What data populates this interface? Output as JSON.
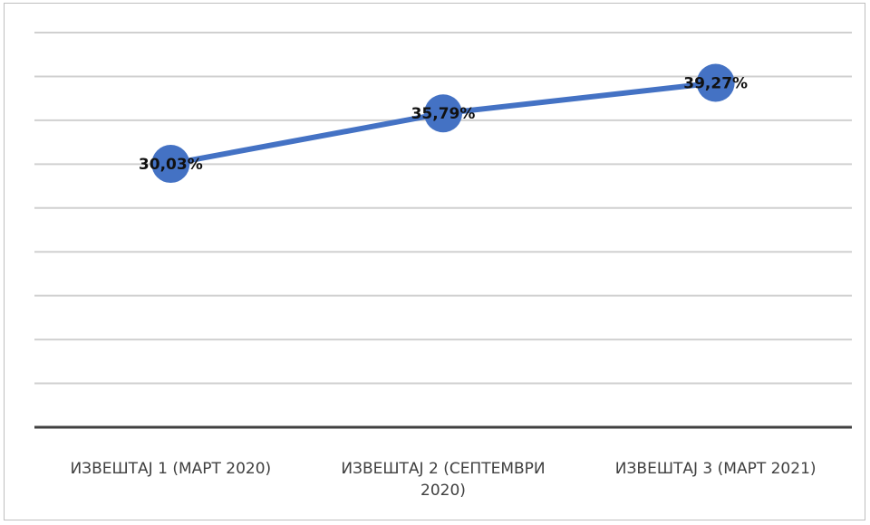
{
  "chart_data": {
    "type": "line",
    "title": "",
    "xlabel": "",
    "ylabel": "",
    "categories": [
      "ИЗВЕШТАЈ 1 (МАРТ 2020)",
      "ИЗВЕШТАЈ 2 (СЕПТЕМВРИ 2020)",
      "ИЗВЕШТАЈ 3 (МАРТ 2021)"
    ],
    "category_lines": [
      [
        "ИЗВЕШТАЈ 1 (МАРТ 2020)"
      ],
      [
        "ИЗВЕШТАЈ 2 (СЕПТЕМВРИ",
        "2020)"
      ],
      [
        "ИЗВЕШТАЈ 3 (МАРТ 2021)"
      ]
    ],
    "series": [
      {
        "values": [
          30.03,
          35.79,
          39.27
        ],
        "labels": [
          "30,03%",
          "35,79%",
          "39,27%"
        ],
        "color": "#4472c4"
      }
    ],
    "ylim": [
      0,
      45
    ],
    "gridlines": true,
    "legend": "none"
  }
}
